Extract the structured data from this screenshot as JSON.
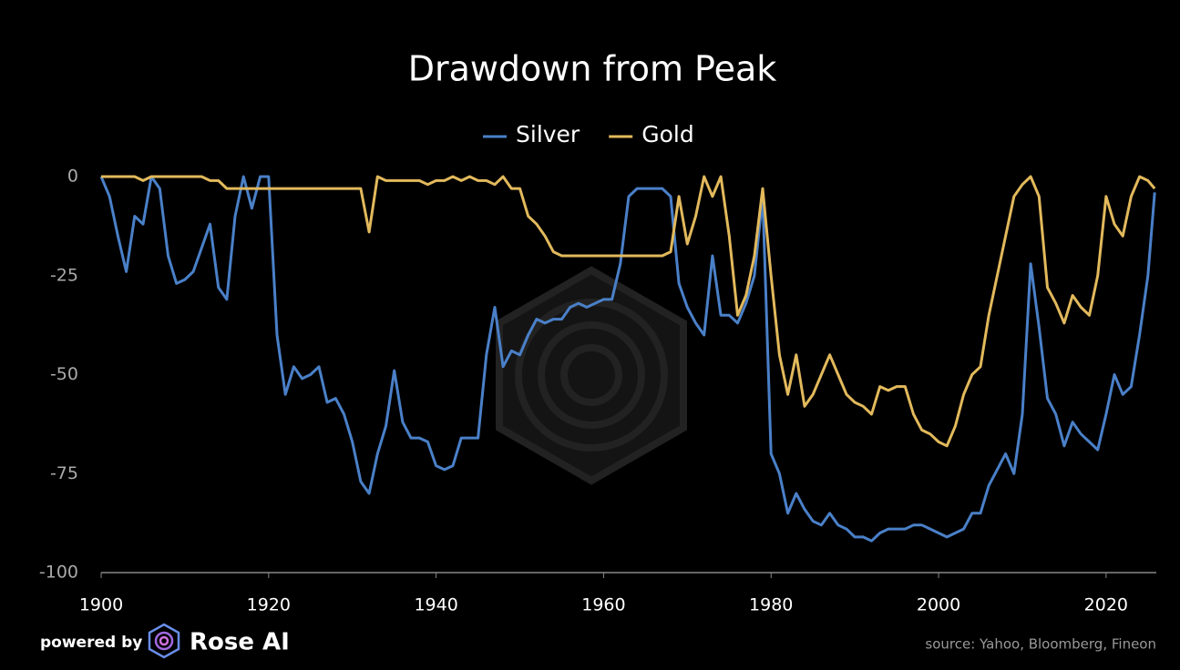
{
  "chart_data": {
    "type": "line",
    "title": "Drawdown from Peak",
    "x": [
      1900,
      1901,
      1902,
      1903,
      1904,
      1905,
      1906,
      1907,
      1908,
      1909,
      1910,
      1911,
      1912,
      1913,
      1914,
      1915,
      1916,
      1917,
      1918,
      1919,
      1920,
      1921,
      1922,
      1923,
      1924,
      1925,
      1926,
      1927,
      1928,
      1929,
      1930,
      1931,
      1932,
      1933,
      1934,
      1935,
      1936,
      1937,
      1938,
      1939,
      1940,
      1941,
      1942,
      1943,
      1944,
      1945,
      1946,
      1947,
      1948,
      1949,
      1950,
      1951,
      1952,
      1953,
      1954,
      1955,
      1956,
      1957,
      1958,
      1959,
      1960,
      1961,
      1962,
      1963,
      1964,
      1965,
      1966,
      1967,
      1968,
      1969,
      1970,
      1971,
      1972,
      1973,
      1974,
      1975,
      1976,
      1977,
      1978,
      1979,
      1980,
      1981,
      1982,
      1983,
      1984,
      1985,
      1986,
      1987,
      1988,
      1989,
      1990,
      1991,
      1992,
      1993,
      1994,
      1995,
      1996,
      1997,
      1998,
      1999,
      2000,
      2001,
      2002,
      2003,
      2004,
      2005,
      2006,
      2007,
      2008,
      2009,
      2010,
      2011,
      2012,
      2013,
      2014,
      2015,
      2016,
      2017,
      2018,
      2019,
      2020,
      2021,
      2022,
      2023,
      2024,
      2025,
      2025.8
    ],
    "series": [
      {
        "name": "Silver",
        "color": "#4a80c8",
        "values": [
          0,
          -5,
          -15,
          -24,
          -10,
          -12,
          0,
          -3,
          -20,
          -27,
          -26,
          -24,
          -18,
          -12,
          -28,
          -31,
          -10,
          0,
          -8,
          0,
          0,
          -40,
          -55,
          -48,
          -51,
          -50,
          -48,
          -57,
          -56,
          -60,
          -67,
          -77,
          -80,
          -70,
          -63,
          -49,
          -62,
          -66,
          -66,
          -67,
          -73,
          -74,
          -73,
          -66,
          -66,
          -66,
          -45,
          -33,
          -48,
          -44,
          -45,
          -40,
          -36,
          -37,
          -36,
          -36,
          -33,
          -32,
          -33,
          -32,
          -31,
          -31,
          -22,
          -5,
          -3,
          -3,
          -3,
          -3,
          -5,
          -27,
          -33,
          -37,
          -40,
          -20,
          -35,
          -35,
          -37,
          -32,
          -25,
          -5,
          -70,
          -75,
          -85,
          -80,
          -84,
          -87,
          -88,
          -85,
          -88,
          -89,
          -91,
          -91,
          -92,
          -90,
          -89,
          -89,
          -89,
          -88,
          -88,
          -89,
          -90,
          -91,
          -90,
          -89,
          -85,
          -85,
          -78,
          -74,
          -70,
          -75,
          -60,
          -22,
          -38,
          -56,
          -60,
          -68,
          -62,
          -65,
          -67,
          -69,
          -60,
          -50,
          -55,
          -53,
          -40,
          -25,
          -4
        ]
      },
      {
        "name": "Gold",
        "color": "#e2b95c",
        "values": [
          0,
          0,
          0,
          0,
          0,
          -1,
          0,
          0,
          0,
          0,
          0,
          0,
          0,
          -1,
          -1,
          -3,
          -3,
          -3,
          -3,
          -3,
          -3,
          -3,
          -3,
          -3,
          -3,
          -3,
          -3,
          -3,
          -3,
          -3,
          -3,
          -3,
          -14,
          0,
          -1,
          -1,
          -1,
          -1,
          -1,
          -2,
          -1,
          -1,
          0,
          -1,
          0,
          -1,
          -1,
          -2,
          0,
          -3,
          -3,
          -10,
          -12,
          -15,
          -19,
          -20,
          -20,
          -20,
          -20,
          -20,
          -20,
          -20,
          -20,
          -20,
          -20,
          -20,
          -20,
          -20,
          -19,
          -5,
          -17,
          -10,
          0,
          -5,
          0,
          -15,
          -35,
          -30,
          -20,
          -3,
          -25,
          -45,
          -55,
          -45,
          -58,
          -55,
          -50,
          -45,
          -50,
          -55,
          -57,
          -58,
          -60,
          -53,
          -54,
          -53,
          -53,
          -60,
          -64,
          -65,
          -67,
          -68,
          -63,
          -55,
          -50,
          -48,
          -35,
          -25,
          -15,
          -5,
          -2,
          0,
          -5,
          -28,
          -32,
          -37,
          -30,
          -33,
          -35,
          -25,
          -5,
          -12,
          -15,
          -5,
          0,
          -1,
          -3
        ]
      }
    ],
    "xlim": [
      1900,
      2026
    ],
    "xticks": [
      1900,
      1920,
      1940,
      1960,
      1980,
      2000,
      2020
    ],
    "ylim": [
      -100,
      0
    ],
    "yticks": [
      0,
      -25,
      -50,
      -75,
      -100
    ],
    "footer": {
      "powered": "powered by",
      "brand": "Rose AI",
      "source": "source: Yahoo, Bloomberg, Fineon"
    }
  }
}
